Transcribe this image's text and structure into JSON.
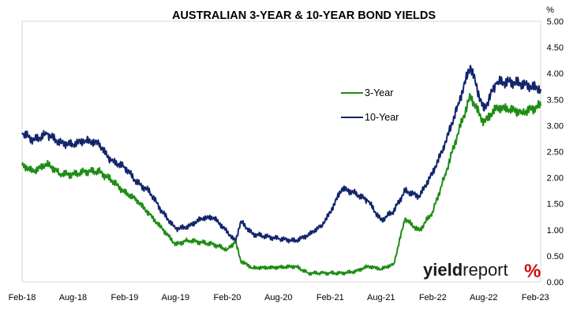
{
  "chart_data": {
    "type": "line",
    "title": "AUSTRALIAN 3-YEAR & 10-YEAR BOND YIELDS",
    "ylabel_unit": "%",
    "xlabel": "",
    "ylim": [
      0,
      5
    ],
    "xlim": [
      "2018-02-01",
      "2023-02-20"
    ],
    "y_ticks": [
      "0.00",
      "0.50",
      "1.00",
      "1.50",
      "2.00",
      "2.50",
      "3.00",
      "3.50",
      "4.00",
      "4.50",
      "5.00"
    ],
    "x_ticks": [
      "Feb-18",
      "Aug-18",
      "Feb-19",
      "Aug-19",
      "Feb-20",
      "Aug-20",
      "Feb-21",
      "Aug-21",
      "Feb-22",
      "Aug-22",
      "Feb-23"
    ],
    "x_tick_dates": [
      "2018-02-01",
      "2018-08-01",
      "2019-02-01",
      "2019-08-01",
      "2020-02-01",
      "2020-08-01",
      "2021-02-01",
      "2021-08-01",
      "2022-02-01",
      "2022-08-01",
      "2023-02-01"
    ],
    "grid": false,
    "legend_position": "center-right",
    "series": [
      {
        "name": "3-Year",
        "color": "#1e8c14",
        "points": [
          [
            "2018-02-01",
            2.24
          ],
          [
            "2018-03-15",
            2.12
          ],
          [
            "2018-05-01",
            2.27
          ],
          [
            "2018-06-15",
            2.08
          ],
          [
            "2018-08-01",
            2.06
          ],
          [
            "2018-09-15",
            2.12
          ],
          [
            "2018-11-01",
            2.12
          ],
          [
            "2018-12-15",
            1.96
          ],
          [
            "2019-02-01",
            1.72
          ],
          [
            "2019-03-15",
            1.58
          ],
          [
            "2019-05-01",
            1.29
          ],
          [
            "2019-06-15",
            1.02
          ],
          [
            "2019-08-01",
            0.72
          ],
          [
            "2019-09-15",
            0.8
          ],
          [
            "2019-11-01",
            0.76
          ],
          [
            "2019-12-15",
            0.72
          ],
          [
            "2020-02-01",
            0.62
          ],
          [
            "2020-03-01",
            0.78
          ],
          [
            "2020-03-20",
            0.4
          ],
          [
            "2020-05-01",
            0.27
          ],
          [
            "2020-08-01",
            0.28
          ],
          [
            "2020-10-01",
            0.3
          ],
          [
            "2020-11-15",
            0.17
          ],
          [
            "2021-01-01",
            0.17
          ],
          [
            "2021-02-01",
            0.17
          ],
          [
            "2021-03-15",
            0.17
          ],
          [
            "2021-05-01",
            0.2
          ],
          [
            "2021-06-15",
            0.3
          ],
          [
            "2021-08-01",
            0.25
          ],
          [
            "2021-09-15",
            0.34
          ],
          [
            "2021-10-25",
            1.21
          ],
          [
            "2021-12-15",
            0.98
          ],
          [
            "2022-02-01",
            1.35
          ],
          [
            "2022-03-15",
            2.02
          ],
          [
            "2022-05-01",
            2.84
          ],
          [
            "2022-06-15",
            3.57
          ],
          [
            "2022-08-01",
            3.05
          ],
          [
            "2022-09-15",
            3.34
          ],
          [
            "2022-11-01",
            3.32
          ],
          [
            "2022-12-15",
            3.25
          ],
          [
            "2023-02-20",
            3.38
          ]
        ]
      },
      {
        "name": "10-Year",
        "color": "#12246b",
        "points": [
          [
            "2018-02-01",
            2.86
          ],
          [
            "2018-03-15",
            2.72
          ],
          [
            "2018-05-01",
            2.84
          ],
          [
            "2018-06-15",
            2.67
          ],
          [
            "2018-08-01",
            2.64
          ],
          [
            "2018-09-15",
            2.72
          ],
          [
            "2018-11-01",
            2.65
          ],
          [
            "2018-12-15",
            2.32
          ],
          [
            "2019-02-01",
            2.21
          ],
          [
            "2019-03-15",
            1.92
          ],
          [
            "2019-05-01",
            1.73
          ],
          [
            "2019-06-15",
            1.34
          ],
          [
            "2019-08-01",
            1.02
          ],
          [
            "2019-09-15",
            1.06
          ],
          [
            "2019-11-01",
            1.22
          ],
          [
            "2019-12-15",
            1.24
          ],
          [
            "2020-02-01",
            0.96
          ],
          [
            "2020-03-01",
            0.78
          ],
          [
            "2020-03-20",
            1.16
          ],
          [
            "2020-05-01",
            0.92
          ],
          [
            "2020-08-01",
            0.83
          ],
          [
            "2020-10-01",
            0.79
          ],
          [
            "2020-11-15",
            0.9
          ],
          [
            "2021-01-01",
            1.08
          ],
          [
            "2021-02-01",
            1.33
          ],
          [
            "2021-03-15",
            1.8
          ],
          [
            "2021-05-01",
            1.7
          ],
          [
            "2021-06-15",
            1.56
          ],
          [
            "2021-08-01",
            1.18
          ],
          [
            "2021-09-15",
            1.36
          ],
          [
            "2021-10-25",
            1.75
          ],
          [
            "2021-12-15",
            1.64
          ],
          [
            "2022-02-01",
            2.1
          ],
          [
            "2022-03-15",
            2.62
          ],
          [
            "2022-05-01",
            3.38
          ],
          [
            "2022-06-15",
            4.15
          ],
          [
            "2022-08-01",
            3.29
          ],
          [
            "2022-09-15",
            3.82
          ],
          [
            "2022-11-01",
            3.84
          ],
          [
            "2022-12-15",
            3.8
          ],
          [
            "2023-02-20",
            3.7
          ]
        ]
      }
    ]
  },
  "brand": {
    "part1": "yield",
    "part2": "report",
    "symbol": "%",
    "symbol_color": "#cc1111"
  }
}
